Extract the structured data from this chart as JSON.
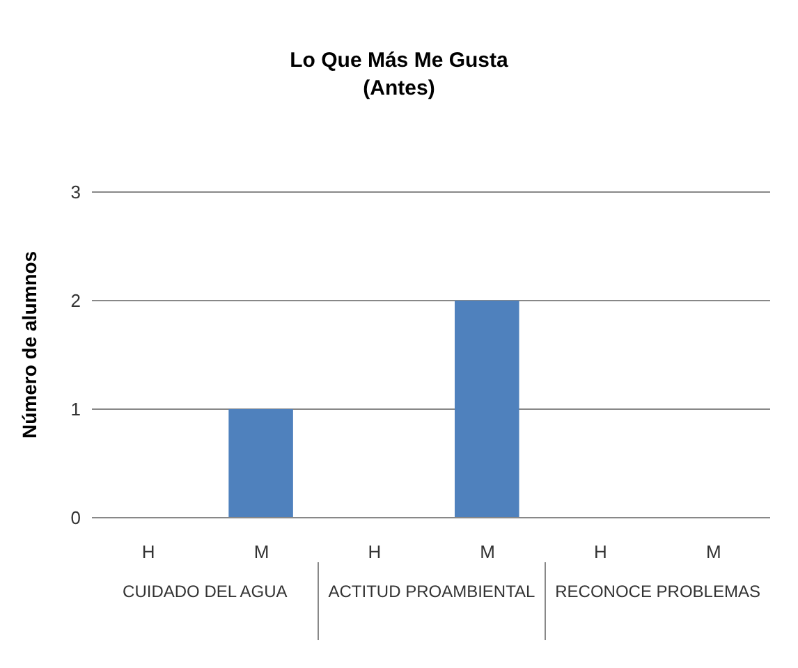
{
  "chart_data": {
    "type": "bar",
    "title": "Lo Que Más Me Gusta",
    "subtitle": "(Antes)",
    "ylabel": "Número de alumnos",
    "categories": [
      "H",
      "M",
      "H",
      "M",
      "H",
      "M"
    ],
    "values": [
      0,
      1,
      0,
      2,
      0,
      0
    ],
    "color": "#4f81bd",
    "ylim": [
      0,
      3
    ],
    "yticks": [
      0,
      1,
      2,
      3
    ],
    "grid": "y",
    "annotations": [
      "CUIDADO DEL AGUA",
      "ACTITUD PROAMBIENTAL",
      "RECONOCE PROBLEMAS"
    ]
  }
}
